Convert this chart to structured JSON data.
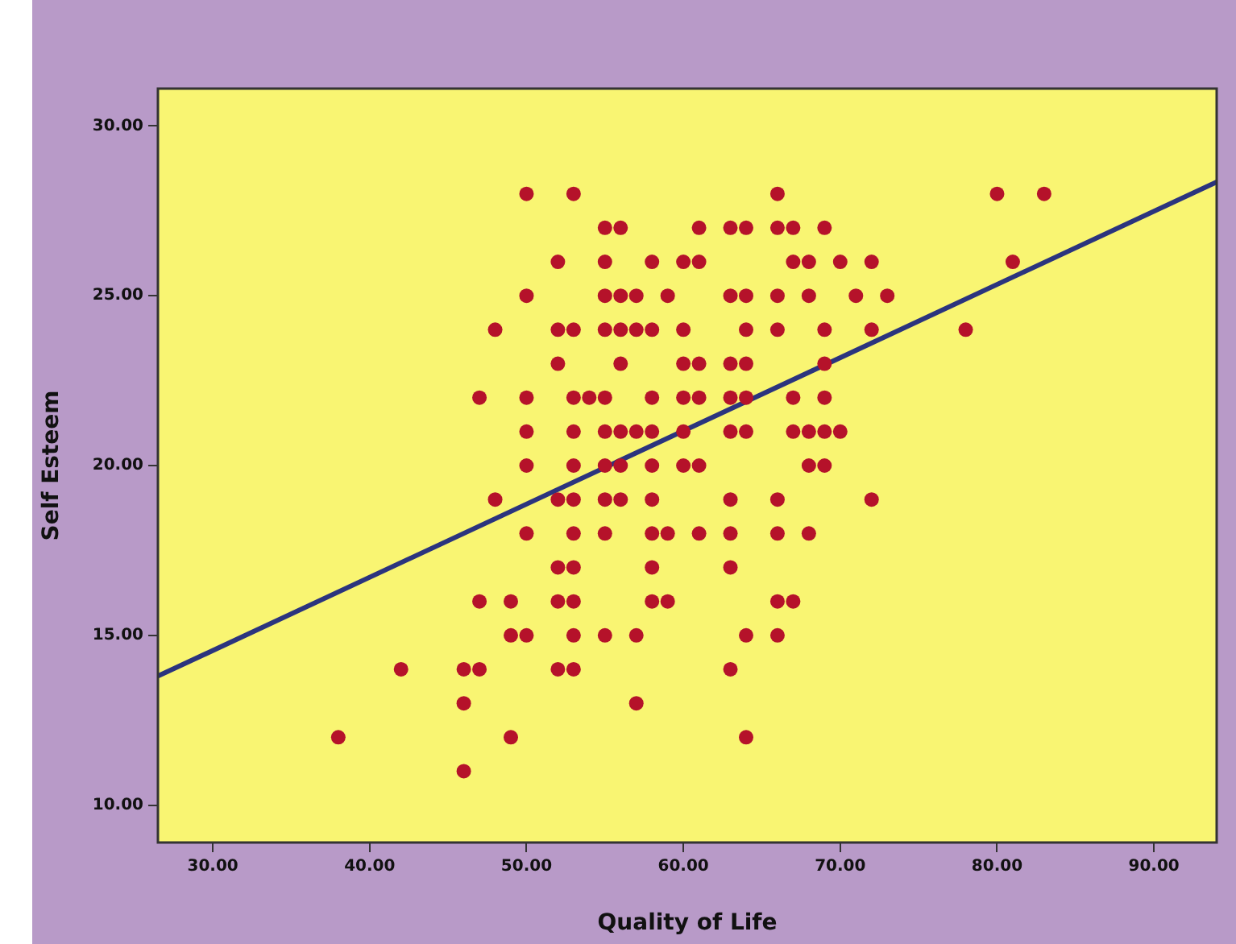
{
  "chart_data": {
    "type": "scatter",
    "xlabel": "Quality of Life",
    "ylabel": "Self Esteem",
    "xlim": [
      26.5,
      94
    ],
    "ylim": [
      8.9,
      31.1
    ],
    "xticks": [
      {
        "value": 30,
        "label": "30.00"
      },
      {
        "value": 40,
        "label": "40.00"
      },
      {
        "value": 50,
        "label": "50.00"
      },
      {
        "value": 60,
        "label": "60.00"
      },
      {
        "value": 70,
        "label": "70.00"
      },
      {
        "value": 80,
        "label": "80.00"
      },
      {
        "value": 90,
        "label": "90.00"
      }
    ],
    "yticks": [
      {
        "value": 10,
        "label": "10.00"
      },
      {
        "value": 15,
        "label": "15.00"
      },
      {
        "value": 20,
        "label": "20.00"
      },
      {
        "value": 25,
        "label": "25.00"
      },
      {
        "value": 30,
        "label": "30.00"
      }
    ],
    "grid": false,
    "legend": false,
    "series": [
      {
        "type": "scatter",
        "marker": "circle",
        "color": "#b5122a",
        "x": [
          50,
          53,
          66,
          80,
          83,
          55,
          56,
          61,
          63,
          64,
          66,
          67,
          69,
          52,
          55,
          58,
          60,
          61,
          67,
          68,
          70,
          72,
          81,
          50,
          55,
          56,
          57,
          59,
          63,
          64,
          66,
          68,
          71,
          73,
          48,
          52,
          53,
          55,
          56,
          57,
          58,
          60,
          64,
          66,
          69,
          72,
          78,
          52,
          56,
          60,
          61,
          63,
          64,
          69,
          47,
          50,
          53,
          54,
          55,
          58,
          60,
          61,
          63,
          64,
          67,
          69,
          50,
          53,
          55,
          56,
          57,
          58,
          60,
          63,
          64,
          67,
          68,
          69,
          70,
          50,
          53,
          55,
          56,
          58,
          60,
          61,
          68,
          69,
          48,
          52,
          53,
          55,
          56,
          58,
          63,
          66,
          72,
          50,
          53,
          55,
          58,
          59,
          61,
          63,
          66,
          68,
          52,
          53,
          58,
          63,
          47,
          49,
          52,
          53,
          58,
          59,
          66,
          67,
          49,
          50,
          53,
          55,
          57,
          64,
          66,
          42,
          46,
          47,
          52,
          53,
          63,
          46,
          57,
          38,
          49,
          64,
          46
        ],
        "values": [
          28,
          28,
          28,
          28,
          28,
          27,
          27,
          27,
          27,
          27,
          27,
          27,
          27,
          26,
          26,
          26,
          26,
          26,
          26,
          26,
          26,
          26,
          26,
          25,
          25,
          25,
          25,
          25,
          25,
          25,
          25,
          25,
          25,
          25,
          24,
          24,
          24,
          24,
          24,
          24,
          24,
          24,
          24,
          24,
          24,
          24,
          24,
          23,
          23,
          23,
          23,
          23,
          23,
          23,
          22,
          22,
          22,
          22,
          22,
          22,
          22,
          22,
          22,
          22,
          22,
          22,
          21,
          21,
          21,
          21,
          21,
          21,
          21,
          21,
          21,
          21,
          21,
          21,
          21,
          20,
          20,
          20,
          20,
          20,
          20,
          20,
          20,
          20,
          19,
          19,
          19,
          19,
          19,
          19,
          19,
          19,
          19,
          18,
          18,
          18,
          18,
          18,
          18,
          18,
          18,
          18,
          17,
          17,
          17,
          17,
          16,
          16,
          16,
          16,
          16,
          16,
          16,
          16,
          15,
          15,
          15,
          15,
          15,
          15,
          15,
          14,
          14,
          14,
          14,
          14,
          14,
          13,
          13,
          12,
          12,
          12,
          11
        ]
      },
      {
        "type": "line",
        "color": "#2b347e",
        "x": [
          26.5,
          94
        ],
        "values": [
          13.8,
          28.35
        ]
      }
    ]
  }
}
